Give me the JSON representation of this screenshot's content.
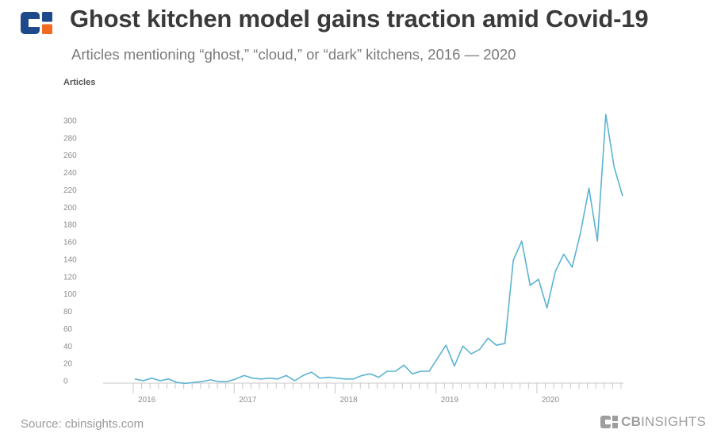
{
  "header": {
    "title": "Ghost kitchen model gains traction amid Covid-19",
    "subtitle": "Articles mentioning “ghost,” “cloud,” or “dark” kitchens, 2016 — 2020"
  },
  "footer": {
    "source": "Source: cbinsights.com",
    "brand_bold": "CB",
    "brand_rest": "INSIGHTS"
  },
  "colors": {
    "line": "#5bb3d1",
    "brand_blue": "#1e4a8c",
    "brand_orange": "#f26a21",
    "axis": "#c8c8c8",
    "tick_text": "#8c8c8c"
  },
  "chart_data": {
    "type": "line",
    "title": "Ghost kitchen model gains traction amid Covid-19",
    "ylabel": "Articles",
    "xlabel": "",
    "ylim": [
      0,
      300
    ],
    "yticks": [
      0,
      20,
      40,
      60,
      80,
      100,
      120,
      140,
      160,
      180,
      200,
      220,
      240,
      260,
      280,
      300
    ],
    "xticks": [
      "2016",
      "2017",
      "2018",
      "2019",
      "2020"
    ],
    "x_start": "2016-01",
    "values": [
      2,
      0,
      3,
      0,
      2,
      -2,
      -3,
      -2,
      -1,
      1,
      -1,
      -1,
      2,
      6,
      3,
      2,
      3,
      2,
      6,
      0,
      6,
      10,
      3,
      4,
      3,
      2,
      2,
      6,
      8,
      4,
      11,
      11,
      18,
      8,
      11,
      11,
      26,
      41,
      17,
      40,
      31,
      36,
      49,
      41,
      43,
      139,
      161,
      110,
      117,
      84,
      126,
      146,
      131,
      171,
      222,
      161,
      307,
      246,
      213
    ]
  }
}
